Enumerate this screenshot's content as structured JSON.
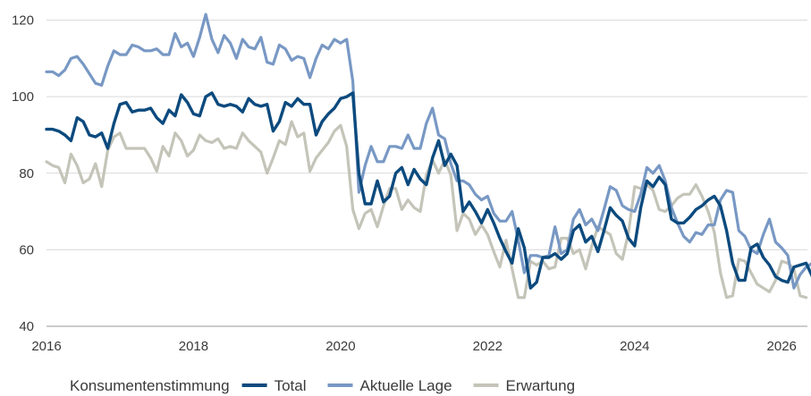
{
  "chart_data": {
    "type": "line",
    "title": "",
    "xlabel": "",
    "ylabel": "",
    "xlim": [
      2016,
      2026.35
    ],
    "ylim": [
      40,
      122
    ],
    "y_ticks": [
      40,
      60,
      80,
      100,
      120
    ],
    "x_ticks": [
      2016,
      2018,
      2020,
      2022,
      2024,
      2026
    ],
    "y_tick_labels": [
      "40",
      "60",
      "80",
      "100",
      "120"
    ],
    "x_tick_labels": [
      "2016",
      "2018",
      "2020",
      "2022",
      "2024",
      "2026"
    ],
    "grid": "horizontal",
    "legend_position": "bottom",
    "legend_label": "Konsumentenstimmung",
    "x_start": 2016,
    "x_step": 0.0833333,
    "series": [
      {
        "name": "Total",
        "color": "#0b4a7e",
        "values": [
          91.5,
          91.5,
          91.0,
          90.0,
          88.5,
          94.5,
          93.5,
          90.0,
          89.5,
          90.5,
          86.5,
          93.0,
          98.0,
          98.5,
          96.0,
          96.5,
          96.5,
          97.0,
          94.5,
          93.0,
          96.5,
          95.0,
          100.5,
          98.5,
          95.5,
          95.0,
          100.0,
          101.0,
          98.0,
          97.5,
          98.0,
          97.5,
          96.0,
          99.5,
          98.0,
          97.5,
          98.0,
          91.0,
          93.5,
          98.5,
          97.5,
          99.5,
          98.0,
          98.0,
          90.0,
          93.5,
          95.5,
          97.0,
          99.5,
          100.0,
          101.0,
          80.0,
          72.0,
          72.0,
          78.0,
          72.5,
          74.0,
          80.0,
          81.5,
          77.0,
          81.0,
          78.5,
          77.0,
          84.0,
          88.5,
          82.0,
          85.0,
          82.0,
          70.0,
          72.5,
          70.0,
          67.0,
          70.5,
          67.0,
          63.0,
          59.5,
          56.5,
          65.5,
          60.5,
          50.0,
          51.5,
          58.0,
          58.0,
          59.0,
          57.5,
          59.0,
          65.0,
          66.5,
          62.0,
          63.5,
          59.5,
          65.0,
          71.0,
          69.0,
          67.5,
          63.0,
          61.0,
          71.0,
          78.0,
          76.5,
          79.0,
          77.0,
          68.0,
          67.0,
          67.0,
          68.5,
          70.5,
          71.5,
          73.0,
          74.0,
          71.5,
          65.0,
          56.5,
          52.0,
          52.0,
          60.5,
          61.5,
          58.0,
          56.0,
          53.0,
          52.0,
          51.5,
          55.5,
          56.0,
          56.5,
          53.0,
          48.0
        ]
      },
      {
        "name": "Aktuelle Lage",
        "color": "#7898c4",
        "values": [
          106.5,
          106.5,
          105.5,
          107.0,
          110.0,
          110.5,
          108.5,
          106.0,
          103.5,
          103.0,
          108.0,
          112.0,
          111.0,
          111.0,
          113.5,
          113.0,
          112.0,
          112.0,
          112.5,
          111.0,
          111.0,
          116.5,
          113.0,
          114.0,
          110.5,
          115.5,
          121.5,
          115.0,
          111.5,
          116.0,
          114.0,
          110.0,
          115.0,
          113.0,
          112.5,
          115.5,
          109.0,
          108.5,
          113.5,
          112.5,
          109.5,
          110.5,
          110.0,
          105.0,
          110.0,
          113.5,
          112.5,
          115.0,
          114.0,
          115.0,
          104.0,
          75.0,
          82.0,
          87.0,
          83.0,
          83.0,
          87.0,
          87.0,
          86.5,
          90.0,
          86.5,
          86.5,
          93.0,
          97.0,
          90.0,
          89.0,
          82.5,
          78.0,
          78.0,
          77.0,
          74.5,
          73.0,
          74.0,
          69.5,
          67.5,
          67.5,
          70.0,
          62.5,
          54.0,
          58.5,
          58.5,
          58.0,
          58.5,
          66.0,
          59.0,
          60.0,
          68.0,
          70.5,
          66.5,
          68.0,
          65.0,
          70.5,
          76.5,
          75.5,
          71.5,
          70.5,
          70.0,
          74.5,
          81.5,
          80.0,
          82.0,
          78.0,
          71.0,
          67.0,
          63.5,
          62.0,
          64.5,
          64.0,
          66.5,
          66.5,
          73.0,
          75.5,
          75.0,
          65.0,
          63.5,
          60.0,
          59.0,
          64.0,
          68.0,
          62.0,
          60.5,
          58.5,
          50.0,
          53.5,
          55.5,
          56.5,
          56.5,
          55.0,
          52.0
        ]
      },
      {
        "name": "Erwartung",
        "color": "#c4c4b9",
        "values": [
          83.0,
          82.0,
          81.5,
          77.5,
          85.0,
          82.0,
          77.5,
          78.5,
          82.5,
          76.5,
          86.0,
          89.5,
          90.5,
          86.5,
          86.5,
          86.5,
          86.5,
          84.0,
          80.5,
          87.0,
          84.5,
          90.5,
          88.5,
          84.5,
          86.0,
          90.0,
          88.5,
          88.0,
          89.0,
          86.5,
          87.0,
          86.5,
          90.5,
          88.5,
          87.0,
          85.5,
          80.0,
          84.0,
          88.5,
          87.5,
          93.5,
          89.5,
          90.5,
          80.5,
          84.0,
          86.0,
          88.0,
          91.0,
          92.5,
          87.0,
          70.5,
          65.5,
          69.5,
          70.5,
          66.0,
          71.5,
          76.0,
          76.0,
          70.5,
          73.0,
          71.0,
          70.0,
          79.5,
          83.5,
          80.0,
          83.5,
          79.5,
          65.0,
          69.5,
          68.0,
          64.0,
          66.5,
          64.0,
          59.5,
          55.5,
          62.5,
          55.0,
          47.5,
          47.5,
          57.0,
          56.0,
          57.0,
          55.0,
          55.5,
          63.0,
          63.0,
          59.0,
          60.0,
          55.0,
          61.0,
          66.0,
          65.0,
          64.0,
          59.0,
          57.5,
          64.5,
          76.5,
          76.0,
          77.0,
          75.5,
          70.5,
          70.0,
          71.5,
          73.5,
          74.5,
          74.5,
          77.0,
          74.0,
          70.0,
          64.5,
          54.0,
          47.5,
          48.0,
          57.5,
          57.0,
          54.0,
          51.0,
          50.0,
          49.0,
          52.0,
          57.0,
          56.5,
          55.0,
          48.0,
          47.5
        ]
      }
    ]
  }
}
